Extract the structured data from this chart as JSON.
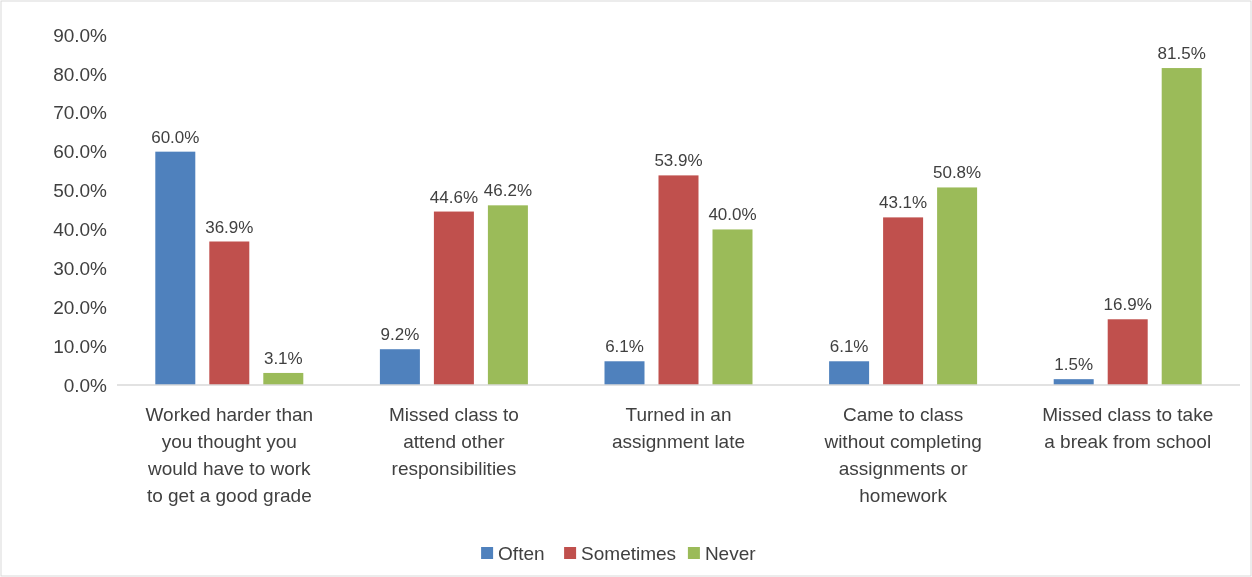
{
  "chart_data": {
    "type": "bar",
    "categories": [
      "Worked harder than you thought you would have to work to get a good grade",
      "Missed class to attend other responsibilities",
      "Turned in an assignment late",
      "Came to class without completing assignments or homework",
      "Missed class to take a break from school"
    ],
    "series": [
      {
        "name": "Often",
        "color": "#4f81bd",
        "values": [
          60.0,
          9.2,
          6.1,
          6.1,
          1.5
        ],
        "value_labels": [
          "60.0%",
          "9.2%",
          "6.1%",
          "6.1%",
          "1.5%"
        ]
      },
      {
        "name": "Sometimes",
        "color": "#c0504d",
        "values": [
          36.9,
          44.6,
          53.9,
          43.1,
          16.9
        ],
        "value_labels": [
          "36.9%",
          "44.6%",
          "53.9%",
          "43.1%",
          "16.9%"
        ]
      },
      {
        "name": "Never",
        "color": "#9bbb59",
        "values": [
          3.1,
          46.2,
          40.0,
          50.8,
          81.5
        ],
        "value_labels": [
          "3.1%",
          "46.2%",
          "40.0%",
          "50.8%",
          "81.5%"
        ]
      }
    ],
    "ylim": [
      0,
      90
    ],
    "yticks": [
      {
        "value": 0,
        "label": "0.0%"
      },
      {
        "value": 10,
        "label": "10.0%"
      },
      {
        "value": 20,
        "label": "20.0%"
      },
      {
        "value": 30,
        "label": "30.0%"
      },
      {
        "value": 40,
        "label": "40.0%"
      },
      {
        "value": 50,
        "label": "50.0%"
      },
      {
        "value": 60,
        "label": "60.0%"
      },
      {
        "value": 70,
        "label": "70.0%"
      },
      {
        "value": 80,
        "label": "80.0%"
      },
      {
        "value": 90,
        "label": "90.0%"
      }
    ],
    "grid": false,
    "legend": "bottom"
  }
}
